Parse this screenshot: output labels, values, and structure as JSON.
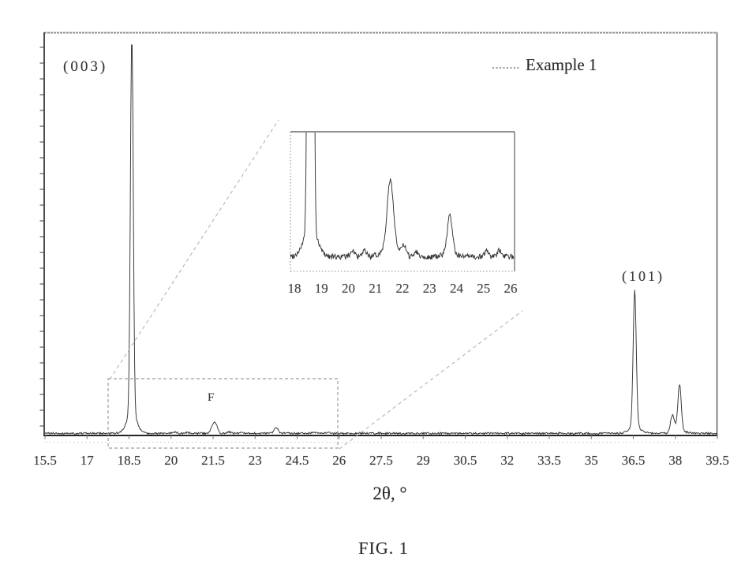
{
  "figure": {
    "caption": "FIG. 1",
    "xlabel": "2θ, °",
    "legend": {
      "label": "Example 1"
    },
    "peak_labels": {
      "p003": "(003)",
      "p101": "(101)",
      "pF": "F"
    }
  },
  "chart_data": {
    "type": "line",
    "title": "",
    "xlabel": "2θ, °",
    "ylabel": "",
    "x_range": [
      15.5,
      39.5
    ],
    "x_tick_labels": [
      "15.5",
      "17",
      "18.5",
      "20",
      "21.5",
      "23",
      "24.5",
      "26",
      "27.5",
      "29",
      "30.5",
      "32",
      "33.5",
      "35",
      "36.5",
      "38",
      "39.5"
    ],
    "grid": false,
    "legend_position": "top-right",
    "series": [
      {
        "name": "Example 1",
        "line_style": "noisy-solid",
        "color": "#333333",
        "peaks": [
          {
            "two_theta": 18.6,
            "rel_intensity": 100,
            "width": 0.05,
            "label": "(003)"
          },
          {
            "two_theta": 20.15,
            "rel_intensity": 0.3,
            "width": 0.06
          },
          {
            "two_theta": 20.6,
            "rel_intensity": 0.25,
            "width": 0.06
          },
          {
            "two_theta": 21.55,
            "rel_intensity": 3,
            "width": 0.09,
            "label": "F"
          },
          {
            "two_theta": 22.05,
            "rel_intensity": 0.45,
            "width": 0.06
          },
          {
            "two_theta": 22.5,
            "rel_intensity": 0.25,
            "width": 0.06
          },
          {
            "two_theta": 23.75,
            "rel_intensity": 1.6,
            "width": 0.07
          },
          {
            "two_theta": 25.1,
            "rel_intensity": 0.25,
            "width": 0.06
          },
          {
            "two_theta": 25.6,
            "rel_intensity": 0.3,
            "width": 0.06
          },
          {
            "two_theta": 36.55,
            "rel_intensity": 35,
            "width": 0.055,
            "label": "(101)"
          },
          {
            "two_theta": 37.9,
            "rel_intensity": 4.5,
            "width": 0.07
          },
          {
            "two_theta": 38.15,
            "rel_intensity": 12,
            "width": 0.06
          }
        ]
      }
    ],
    "inset": {
      "description": "magnified view of dashed boxed region",
      "x_range": [
        18,
        26
      ],
      "x_tick_labels": [
        "18",
        "19",
        "20",
        "21",
        "22",
        "23",
        "24",
        "25",
        "26"
      ],
      "magnification": 5.7
    }
  }
}
